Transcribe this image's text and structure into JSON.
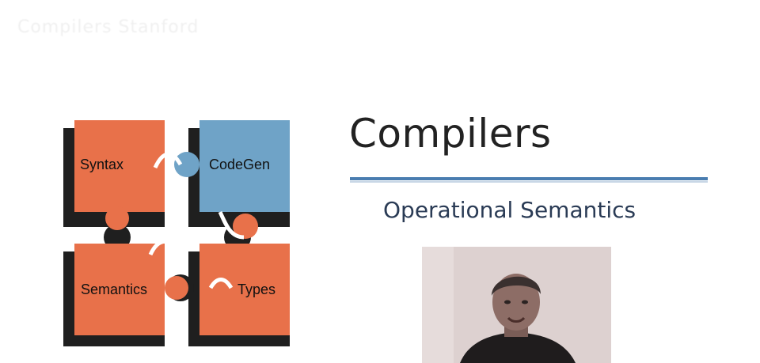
{
  "slide": {
    "watermark": "Compilers Stanford",
    "title": "Compilers",
    "subtitle": "Operational Semantics"
  },
  "puzzle": {
    "pieces": [
      {
        "label": "Syntax",
        "color": "#e8714a"
      },
      {
        "label": "CodeGen",
        "color": "#6fa3c7"
      },
      {
        "label": "Semantics",
        "color": "#e8714a"
      },
      {
        "label": "Types",
        "color": "#e8714a"
      }
    ],
    "shadow_color": "#1f1f1f"
  },
  "colors": {
    "accent_rule": "#4a7db0",
    "title_text": "#222222",
    "subtitle_text": "#2a3b55"
  },
  "video": {
    "icon": "presenter-webcam-icon"
  }
}
